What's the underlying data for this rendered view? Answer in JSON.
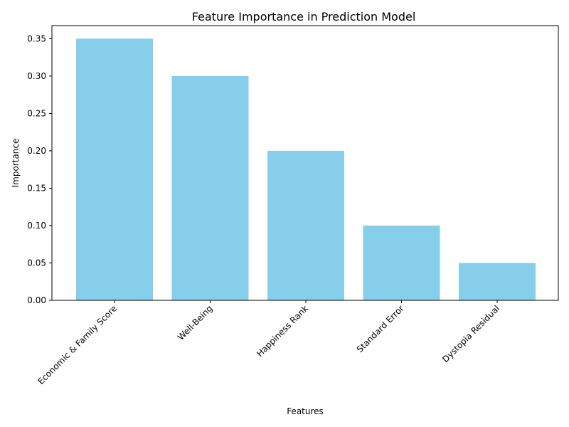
{
  "chart_data": {
    "type": "bar",
    "title": "Feature Importance in Prediction Model",
    "xlabel": "Features",
    "ylabel": "Importance",
    "categories": [
      "Economic & Family Score",
      "Well-Being",
      "Happiness Rank",
      "Standard Error",
      "Dystopia Residual"
    ],
    "values": [
      0.35,
      0.3,
      0.2,
      0.1,
      0.05
    ],
    "ylim": [
      0,
      0.3675
    ],
    "yticks": [
      "0.00",
      "0.05",
      "0.10",
      "0.15",
      "0.20",
      "0.25",
      "0.30",
      "0.35"
    ],
    "bar_color": "#87ceeb",
    "grid": false,
    "legend": "none"
  }
}
